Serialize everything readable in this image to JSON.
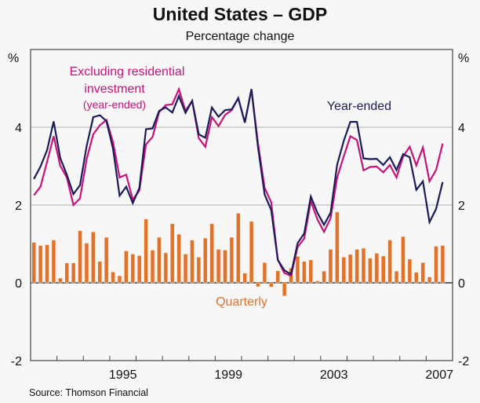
{
  "chart_data": {
    "type": "bar+line",
    "title": "United States – GDP",
    "subtitle": "Percentage change",
    "ylabel_left": "%",
    "ylabel_right": "%",
    "ylim": [
      -2,
      6
    ],
    "yticks": [
      -2,
      0,
      2,
      4
    ],
    "ytick_labels": [
      "-2",
      "0",
      "2",
      "4"
    ],
    "xlim": [
      1992.0,
      2008.0
    ],
    "xtick_labels": [
      {
        "label": "1995",
        "year": 1995
      },
      {
        "label": "1999",
        "year": 1999
      },
      {
        "label": "2003",
        "year": 2003
      },
      {
        "label": "2007",
        "year": 2007
      }
    ],
    "grid": true,
    "source": "Source: Thomson Financial",
    "x_quarters_start": "1992Q1",
    "x_quarters_end": "2007Q3",
    "series": [
      {
        "name": "Quarterly",
        "type": "bar",
        "color": "#e0722a",
        "values": [
          1.04,
          0.96,
          0.98,
          1.1,
          0.12,
          0.51,
          0.51,
          1.34,
          1.02,
          1.31,
          0.55,
          1.17,
          0.28,
          0.18,
          0.82,
          0.74,
          0.7,
          1.64,
          0.84,
          1.17,
          0.77,
          1.52,
          1.25,
          0.74,
          1.1,
          0.66,
          1.15,
          1.52,
          0.86,
          0.84,
          1.17,
          1.79,
          0.25,
          1.58,
          -0.1,
          0.52,
          -0.11,
          0.31,
          -0.34,
          0.38,
          0.68,
          0.55,
          0.59,
          0.05,
          0.3,
          0.86,
          1.82,
          0.66,
          0.73,
          0.86,
          0.89,
          0.63,
          0.76,
          0.69,
          1.1,
          0.3,
          1.19,
          0.61,
          0.27,
          0.52,
          0.15,
          0.94,
          0.96
        ]
      },
      {
        "name": "Year-ended",
        "type": "line",
        "color": "#1b1b5c",
        "values": [
          2.67,
          2.99,
          3.41,
          4.15,
          3.21,
          2.78,
          2.28,
          2.51,
          3.52,
          4.26,
          4.31,
          4.16,
          3.45,
          2.24,
          2.47,
          2.05,
          2.44,
          3.95,
          3.97,
          4.42,
          4.51,
          4.38,
          4.8,
          4.37,
          4.68,
          3.82,
          3.73,
          4.51,
          4.27,
          4.44,
          4.46,
          4.75,
          4.12,
          4.98,
          3.48,
          2.27,
          1.87,
          0.59,
          0.32,
          0.22,
          1.02,
          1.27,
          2.22,
          1.8,
          1.49,
          1.8,
          3.04,
          3.65,
          4.14,
          4.14,
          3.2,
          3.18,
          3.19,
          3.03,
          3.23,
          2.9,
          3.31,
          3.23,
          2.39,
          2.61,
          1.56,
          1.9,
          2.59
        ]
      },
      {
        "name": "Excluding residential investment (year-ended)",
        "type": "line",
        "color": "#c8127a",
        "values": [
          2.25,
          2.47,
          3.11,
          3.77,
          3.01,
          2.71,
          2.0,
          2.17,
          3.18,
          3.82,
          4.05,
          4.19,
          3.62,
          2.71,
          2.78,
          2.14,
          2.37,
          3.56,
          3.75,
          4.39,
          4.57,
          4.59,
          4.98,
          4.42,
          4.68,
          3.72,
          3.5,
          4.26,
          4.03,
          4.32,
          4.44,
          4.75,
          4.12,
          4.98,
          3.58,
          2.44,
          2.07,
          0.59,
          0.25,
          0.18,
          0.92,
          1.14,
          2.1,
          1.63,
          1.31,
          1.66,
          2.71,
          3.25,
          3.77,
          3.67,
          2.89,
          2.98,
          2.99,
          2.84,
          3.03,
          2.71,
          3.25,
          3.5,
          3.02,
          3.48,
          2.61,
          2.9,
          3.58
        ]
      }
    ],
    "annotations": {
      "excl_line1": "Excluding residential",
      "excl_line2": "investment",
      "excl_line3": "(year-ended)",
      "year_ended": "Year-ended",
      "quarterly": "Quarterly"
    }
  }
}
